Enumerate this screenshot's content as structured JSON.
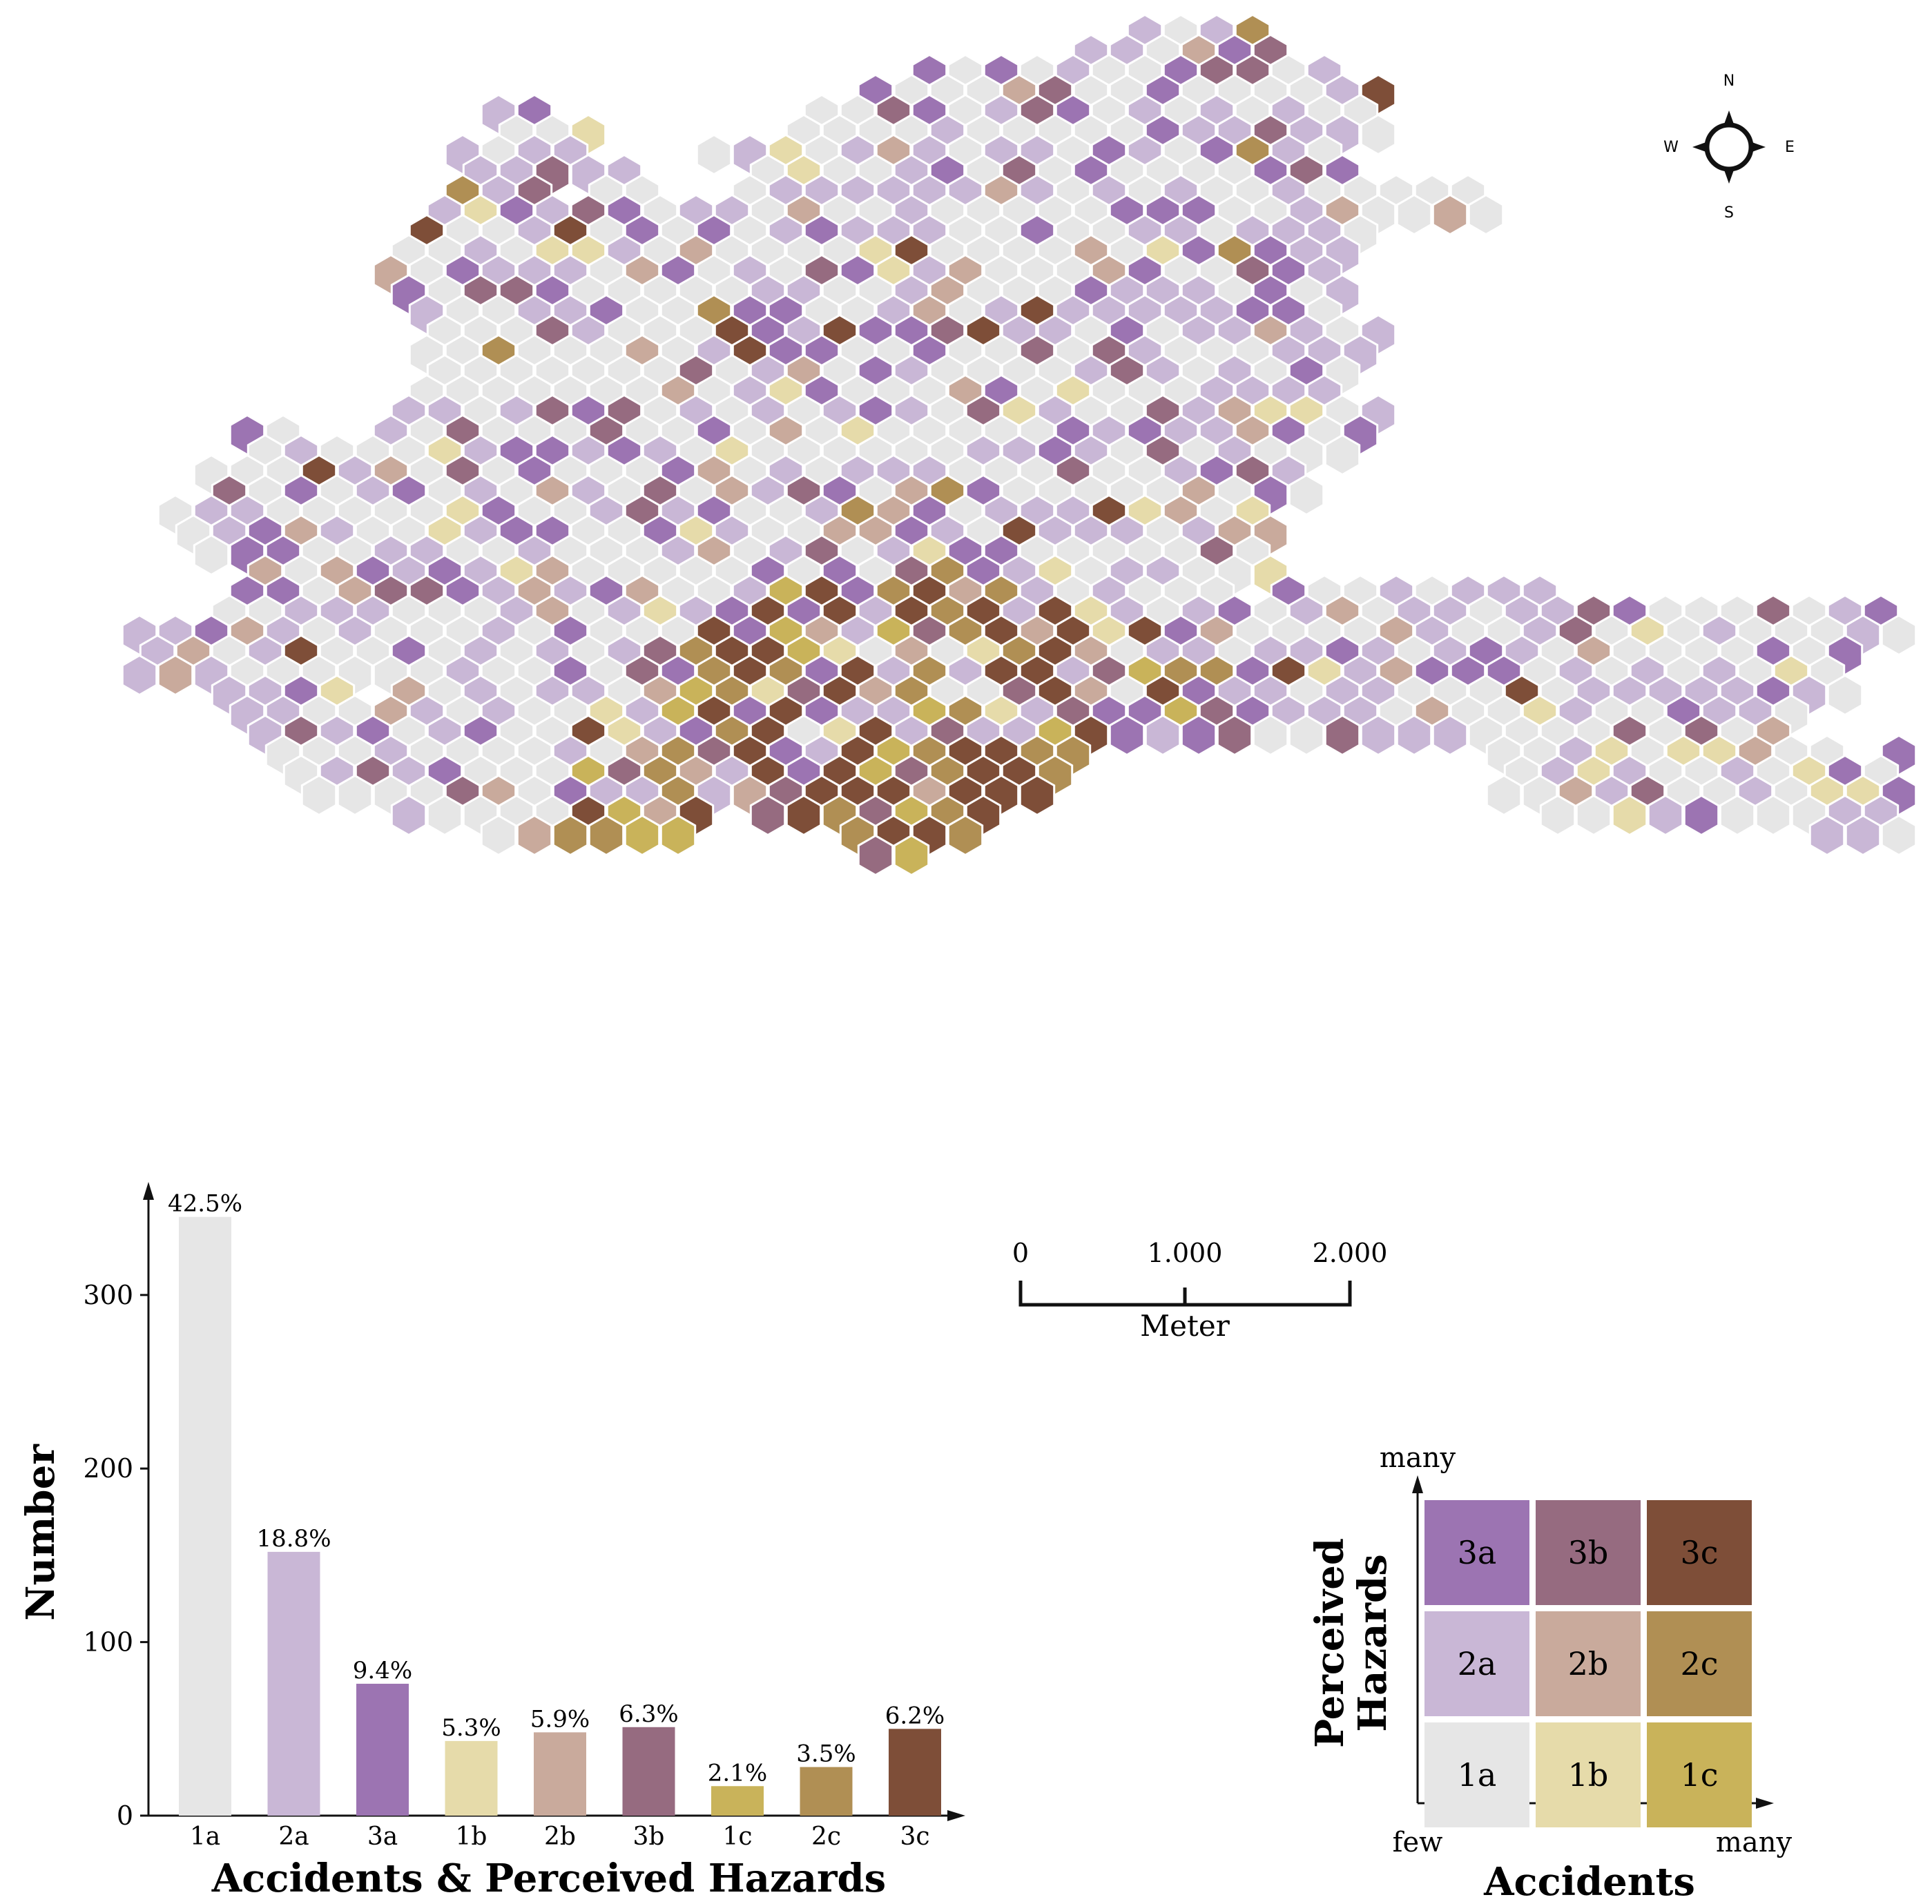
{
  "palette": {
    "1a": "#e6e6e6",
    "2a": "#c9b7d6",
    "3a": "#9c74b2",
    "1b": "#e6dbaa",
    "2b": "#c9aa9c",
    "3b": "#966b80",
    "1c": "#c9b35a",
    "2c": "#b08f54",
    "3c": "#7e4e38"
  },
  "compass": {
    "n": "N",
    "e": "E",
    "s": "S",
    "w": "W"
  },
  "scale_bar": {
    "ticks": [
      "0",
      "1.000",
      "2.000"
    ],
    "unit": "Meter"
  },
  "chart_data": {
    "type": "bar",
    "categories": [
      "1a",
      "2a",
      "3a",
      "1b",
      "2b",
      "3b",
      "1c",
      "2c",
      "3c"
    ],
    "values": [
      345,
      152,
      76,
      43,
      48,
      51,
      17,
      28,
      50
    ],
    "labels": [
      "42.5%",
      "18.8%",
      "9.4%",
      "5.3%",
      "5.9%",
      "6.3%",
      "2.1%",
      "3.5%",
      "6.2%"
    ],
    "xlabel": "Accidents & Perceived Hazards",
    "ylabel": "Number",
    "yticks": [
      0,
      100,
      200,
      300
    ],
    "ylim": [
      0,
      360
    ],
    "grid": false
  },
  "bivariate_legend": {
    "x_axis_title": "Accidents",
    "y_axis_title_line1": "Perceived",
    "y_axis_title_line2": "Hazards",
    "x_low": "few",
    "x_high": "many",
    "y_high": "many",
    "rows": [
      [
        "3a",
        "3b",
        "3c"
      ],
      [
        "2a",
        "2b",
        "2c"
      ],
      [
        "1a",
        "1b",
        "1c"
      ]
    ]
  }
}
